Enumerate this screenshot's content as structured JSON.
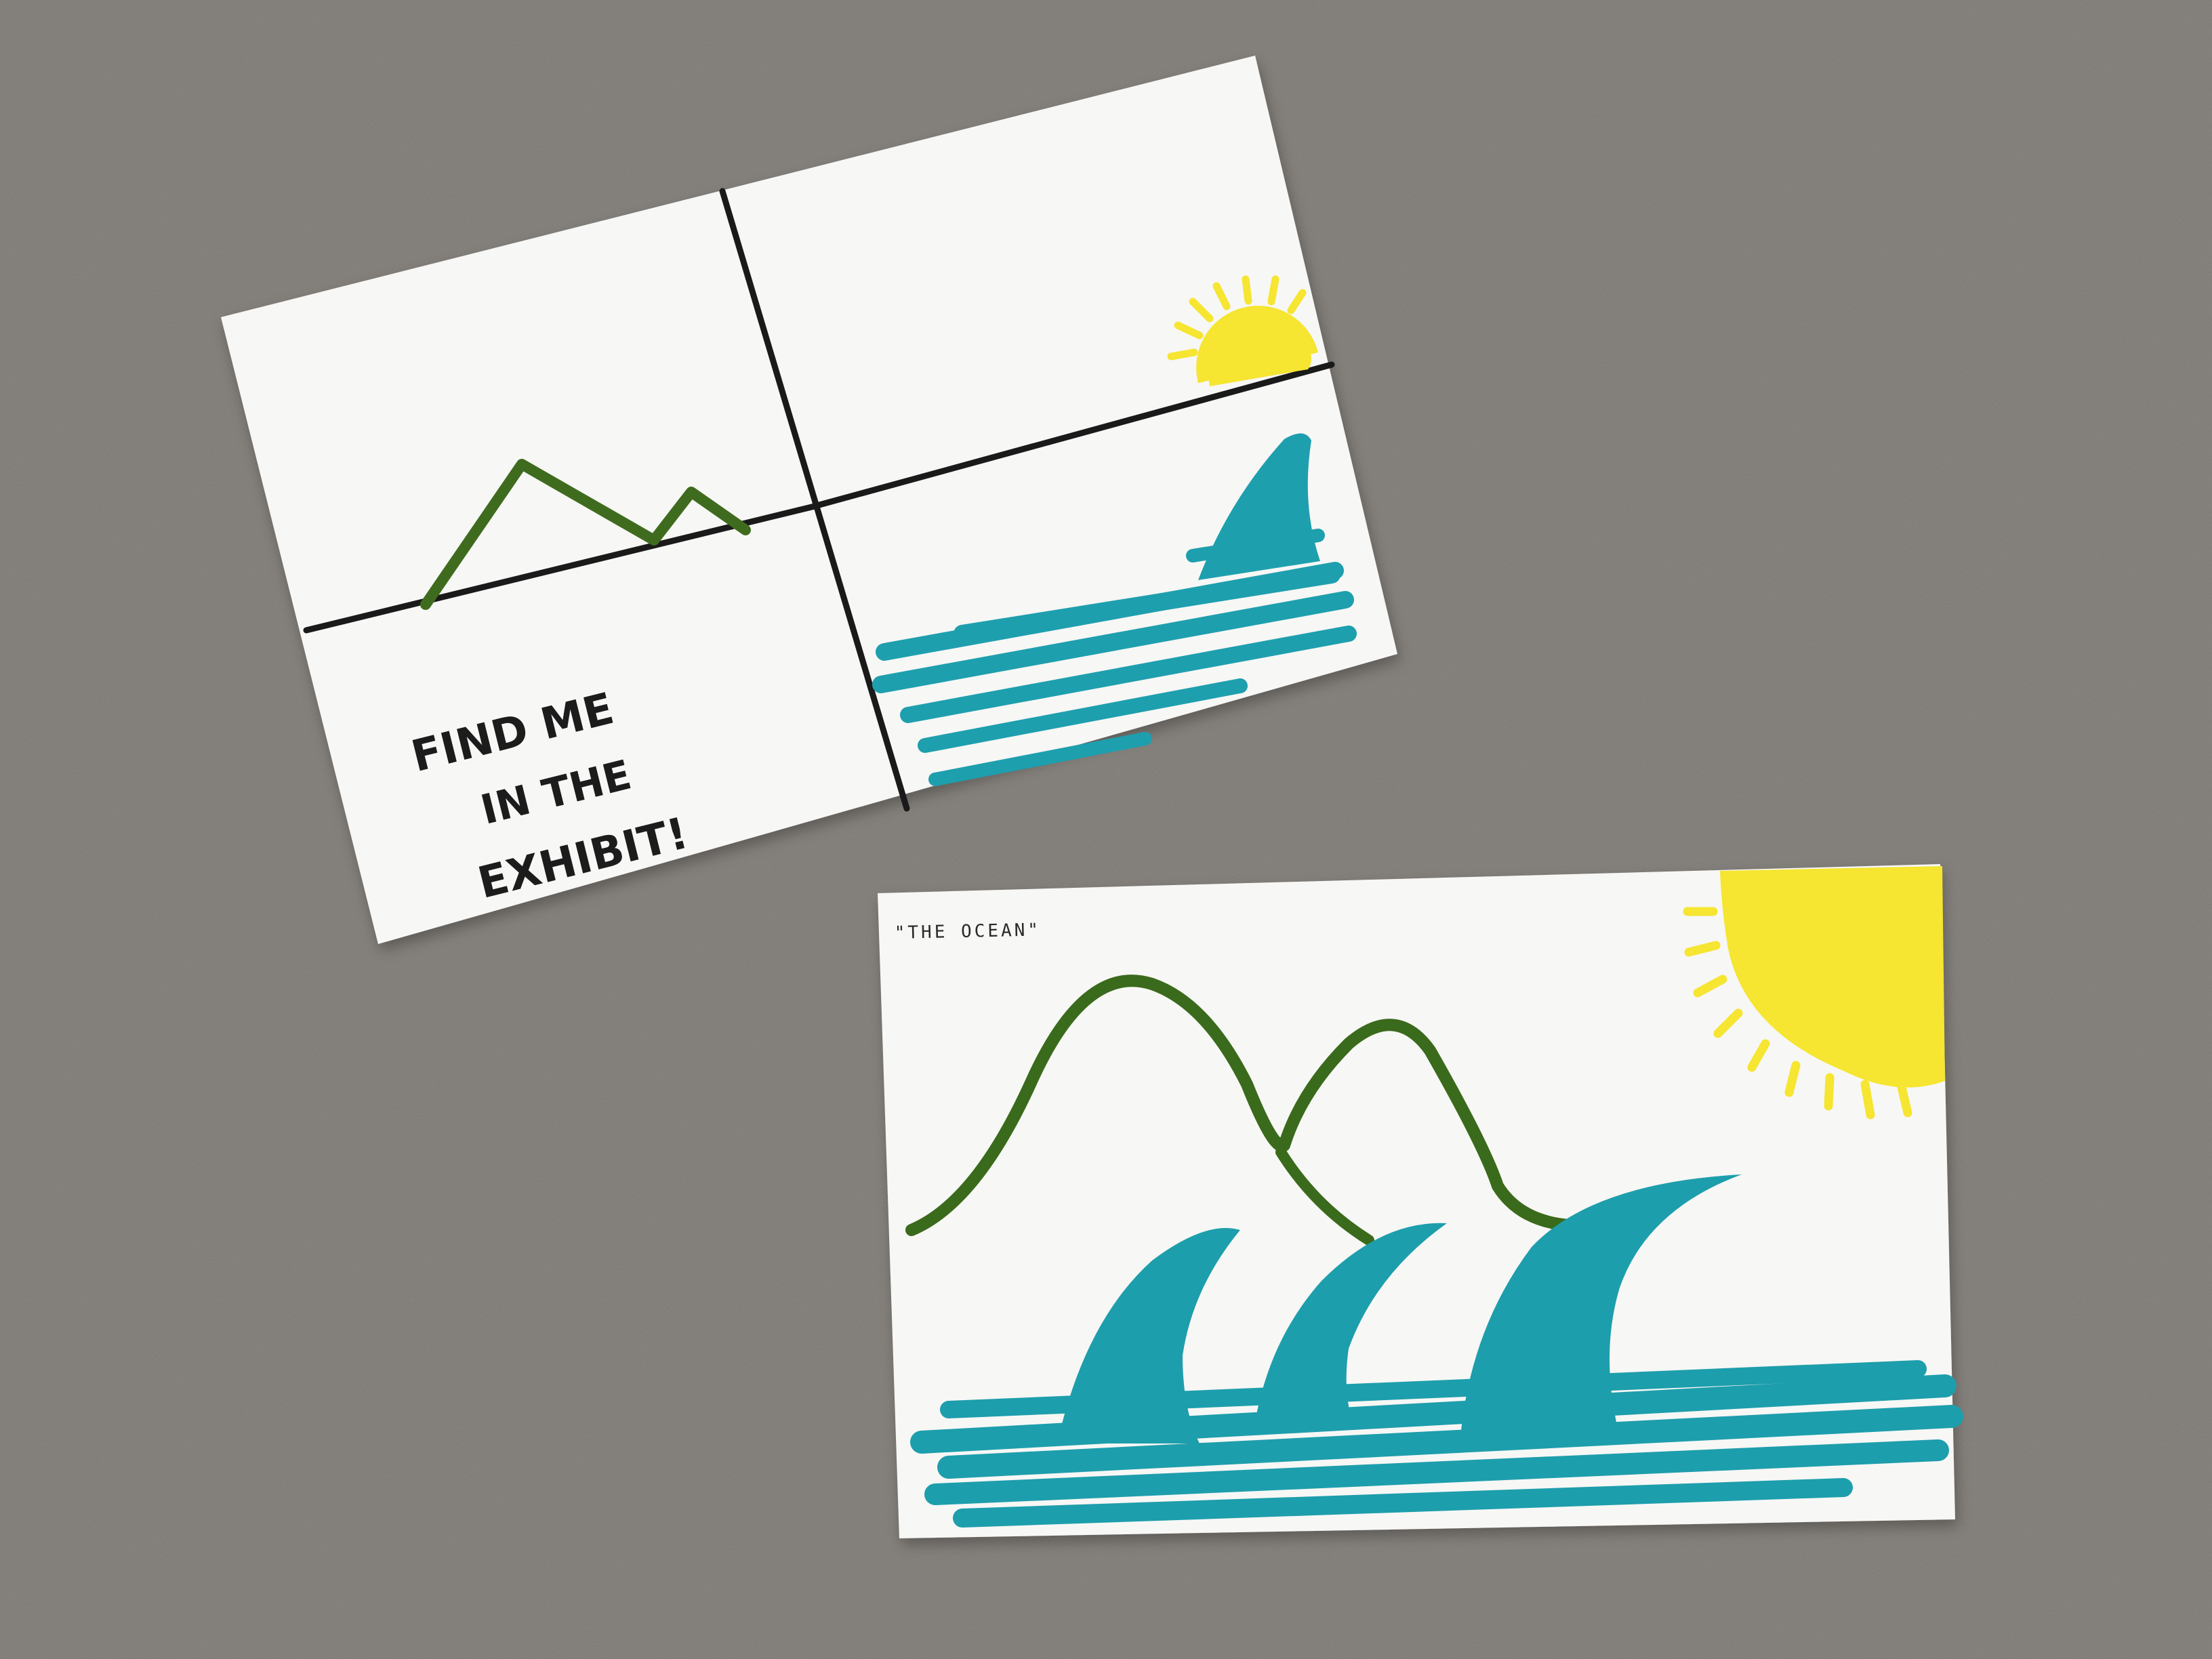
{
  "photo": {
    "background_color": "#8f8b86",
    "card_color": "#f7f7f5"
  },
  "card_left": {
    "caption_lines": [
      "FIND ME",
      "IN THE",
      "EXHIBIT!"
    ],
    "colors": {
      "lines": "#1a1a1a",
      "mountain": "#3f6b1e",
      "sun": "#f6e531",
      "water": "#1e9fae"
    }
  },
  "card_right": {
    "title": "\"THE OCEAN\"",
    "colors": {
      "mountain": "#3a6a1b",
      "sun": "#f6e531",
      "water": "#1d9eac"
    }
  }
}
